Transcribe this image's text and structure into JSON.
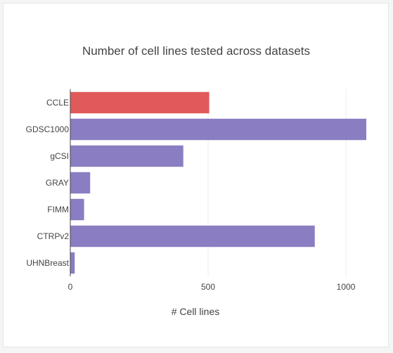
{
  "chart_data": {
    "type": "bar",
    "orientation": "horizontal",
    "title": "Number of cell lines tested across datasets",
    "xlabel": "# Cell lines",
    "ylabel": "",
    "categories": [
      "CCLE",
      "GDSC1000",
      "gCSI",
      "GRAY",
      "FIMM",
      "CTRPv2",
      "UHNBreast"
    ],
    "values": [
      504,
      1074,
      410,
      72,
      50,
      887,
      16
    ],
    "bar_colors": [
      "#e05a5a",
      "#8b7dc2",
      "#8b7dc2",
      "#8b7dc2",
      "#8b7dc2",
      "#8b7dc2",
      "#8b7dc2"
    ],
    "xlim": [
      0,
      1130
    ],
    "xticks": [
      0,
      500,
      1000
    ],
    "grid": "vertical",
    "legend": "none"
  }
}
